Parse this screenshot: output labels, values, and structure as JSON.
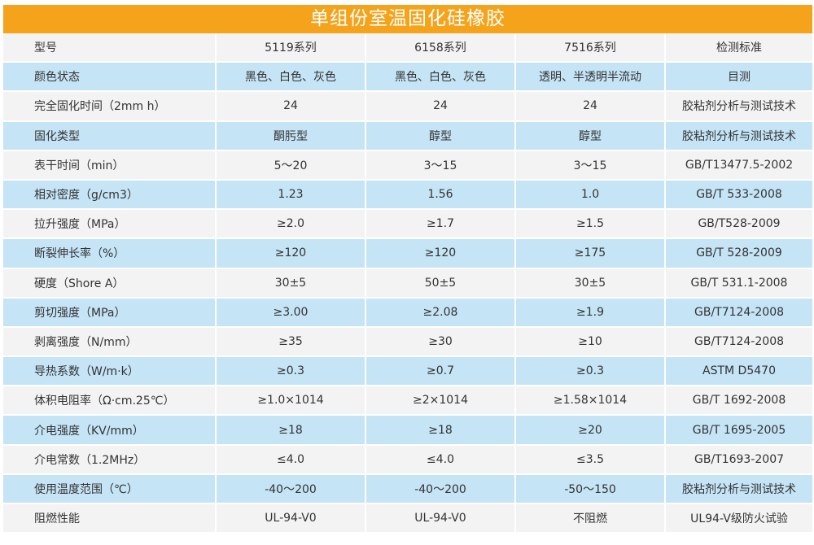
{
  "title": "单组份室温固化硅橡胶",
  "header": [
    "型号",
    "5119系列",
    "6158系列",
    "7516系列",
    "检测标准"
  ],
  "rows": [
    [
      "颜色状态",
      "黑色、白色、灰色",
      "黑色、白色、灰色",
      "透明、半透明半流动",
      "目测"
    ],
    [
      "完全固化时间（2mm h）",
      "24",
      "24",
      "24",
      "胶粘剂分析与测试技术"
    ],
    [
      "固化类型",
      "酮肟型",
      "醇型",
      "醇型",
      "胶粘剂分析与测试技术"
    ],
    [
      "表干时间（min）",
      "5～20",
      "3～15",
      "3～15",
      "GB/T13477.5-2002"
    ],
    [
      "相对密度（g/cm3）",
      "1.23",
      "1.56",
      "1.0",
      "GB/T 533-2008"
    ],
    [
      "拉升强度（MPa）",
      "≥2.0",
      "≥1.7",
      "≥1.5",
      "GB/T528-2009"
    ],
    [
      "断裂伸长率（%）",
      "≥120",
      "≥120",
      "≥175",
      "GB/T 528-2009"
    ],
    [
      "硬度（Shore A）",
      "30±5",
      "50±5",
      "30±5",
      "GB/T 531.1-2008"
    ],
    [
      "剪切强度（MPa）",
      "≥3.00",
      "≥2.08",
      "≥1.9",
      "GB/T7124-2008"
    ],
    [
      "剥离强度（N/mm）",
      "≥35",
      "≥30",
      "≥10",
      "GB/T7124-2008"
    ],
    [
      "导热系数（W/m·k）",
      "≥0.3",
      "≥0.7",
      "≥0.3",
      "ASTM D5470"
    ],
    [
      "体积电阻率（Ω·cm.25℃）",
      "≥1.0×1014",
      "≥2×1014",
      "≥1.58×1014",
      "GB/T 1692-2008"
    ],
    [
      "介电强度（KV/mm）",
      "≥18",
      "≥18",
      "≥20",
      "GB/T 1695-2005"
    ],
    [
      "介电常数（1.2MHz）",
      "≤4.0",
      "≤4.0",
      "≤3.5",
      "GB/T1693-2007"
    ],
    [
      "使用温度范围（℃）",
      "-40～200",
      "-40～200",
      "-50～150",
      "胶粘剂分析与测试技术"
    ],
    [
      "阻燃性能",
      "UL-94-V0",
      "UL-94-V0",
      "不阻燃",
      "UL94-V级防火试验"
    ]
  ],
  "colors": {
    "title_bg": "#f5a31a",
    "row_gray": "#f3f3f3",
    "row_blue": "#c5e4f5"
  }
}
